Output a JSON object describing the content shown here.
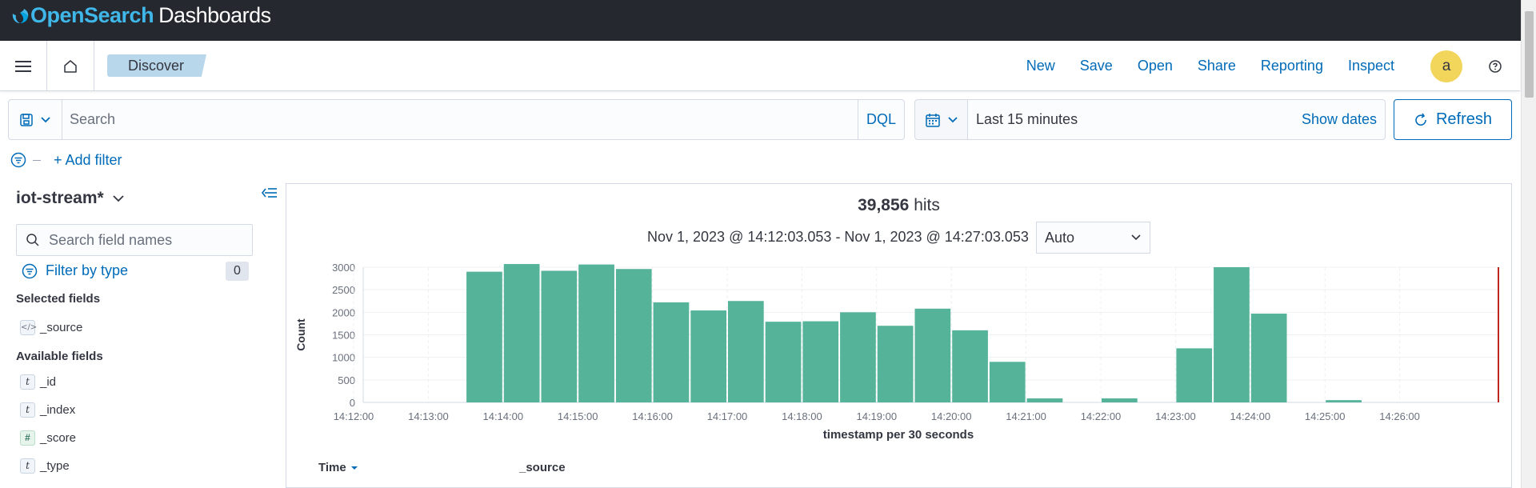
{
  "brand": {
    "name_part1": "OpenSearch",
    "name_part2": "Dashboards"
  },
  "nav": {
    "breadcrumb": "Discover",
    "menu": [
      "New",
      "Save",
      "Open",
      "Share",
      "Reporting",
      "Inspect"
    ],
    "avatar_letter": "a",
    "icons": {
      "menu": "hamburger-icon",
      "home": "home-icon",
      "help": "help-icon"
    }
  },
  "query": {
    "placeholder": "Search",
    "language": "DQL",
    "time_range": "Last 15 minutes",
    "show_dates": "Show dates",
    "refresh": "Refresh"
  },
  "filters": {
    "add_filter": "+ Add filter"
  },
  "sidebar": {
    "index_pattern": "iot-stream*",
    "search_placeholder": "Search field names",
    "filter_by_type": "Filter by type",
    "filter_count": "0",
    "selected_header": "Selected fields",
    "selected_fields": [
      {
        "name": "_source",
        "type": "source"
      }
    ],
    "available_header": "Available fields",
    "available_fields": [
      {
        "name": "_id",
        "type": "t"
      },
      {
        "name": "_index",
        "type": "t"
      },
      {
        "name": "_score",
        "type": "#"
      },
      {
        "name": "_type",
        "type": "t"
      }
    ]
  },
  "results": {
    "hits_count": "39,856",
    "hits_label": "hits",
    "range_text": "Nov 1, 2023 @ 14:12:03.053 - Nov 1, 2023 @ 14:27:03.053",
    "interval": "Auto",
    "table_headers": {
      "time": "Time",
      "source": "_source"
    }
  },
  "colors": {
    "bar": "#54b399",
    "accent": "#006bb8",
    "current_time_line": "#bd271e"
  },
  "chart_data": {
    "type": "bar",
    "title": "",
    "xlabel": "timestamp per 30 seconds",
    "ylabel": "Count",
    "ylim": [
      0,
      3000
    ],
    "yticks": [
      0,
      500,
      1000,
      1500,
      2000,
      2500,
      3000
    ],
    "xticks": [
      "14:12:00",
      "14:13:00",
      "14:14:00",
      "14:15:00",
      "14:16:00",
      "14:17:00",
      "14:18:00",
      "14:19:00",
      "14:20:00",
      "14:21:00",
      "14:22:00",
      "14:23:00",
      "14:24:00",
      "14:25:00",
      "14:26:00"
    ],
    "categories": [
      "14:13:30",
      "14:14:00",
      "14:14:30",
      "14:15:00",
      "14:15:30",
      "14:16:00",
      "14:16:30",
      "14:17:00",
      "14:17:30",
      "14:18:00",
      "14:18:30",
      "14:19:00",
      "14:19:30",
      "14:20:00",
      "14:20:30",
      "14:21:00",
      "14:21:30",
      "14:22:00",
      "14:22:30",
      "14:23:00",
      "14:23:30",
      "14:24:00",
      "14:24:30",
      "14:25:00"
    ],
    "values": [
      2900,
      3070,
      2920,
      3060,
      2960,
      2220,
      2040,
      2250,
      1790,
      1800,
      2000,
      1700,
      2080,
      1600,
      900,
      90,
      0,
      90,
      0,
      1200,
      3000,
      1970,
      0,
      50
    ],
    "grid": true,
    "legend": "none"
  }
}
